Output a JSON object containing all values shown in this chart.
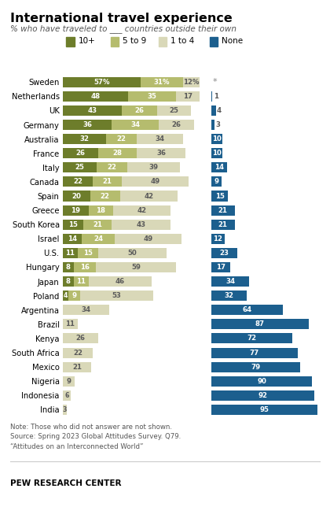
{
  "title": "International travel experience",
  "subtitle": "% who have traveled to ___ countries outside their own",
  "note": "Note: Those who did not answer are not shown.\nSource: Spring 2023 Global Attitudes Survey. Q79.\n“Attitudes on an Interconnected World”",
  "footer": "PEW RESEARCH CENTER",
  "countries": [
    "Sweden",
    "Netherlands",
    "UK",
    "Germany",
    "Australia",
    "France",
    "Italy",
    "Canada",
    "Spain",
    "Greece",
    "South Korea",
    "Israel",
    "U.S.",
    "Hungary",
    "Japan",
    "Poland",
    "Argentina",
    "Brazil",
    "Kenya",
    "South Africa",
    "Mexico",
    "Nigeria",
    "Indonesia",
    "India"
  ],
  "ten_plus": [
    57,
    48,
    43,
    36,
    32,
    26,
    25,
    22,
    20,
    19,
    15,
    14,
    11,
    8,
    8,
    4,
    0,
    0,
    0,
    0,
    0,
    0,
    0,
    0
  ],
  "five_to_9": [
    31,
    35,
    26,
    34,
    22,
    28,
    22,
    21,
    22,
    18,
    21,
    24,
    15,
    16,
    11,
    9,
    0,
    0,
    0,
    0,
    0,
    0,
    0,
    0
  ],
  "one_to_4": [
    12,
    17,
    25,
    26,
    34,
    36,
    39,
    49,
    42,
    42,
    43,
    49,
    50,
    59,
    46,
    53,
    34,
    11,
    26,
    22,
    21,
    9,
    6,
    3
  ],
  "none": [
    0,
    1,
    4,
    3,
    10,
    10,
    14,
    9,
    15,
    21,
    21,
    12,
    23,
    17,
    34,
    32,
    64,
    87,
    72,
    77,
    79,
    90,
    92,
    95
  ],
  "color_10plus": "#6d7d2b",
  "color_5to9": "#b5bc6e",
  "color_1to4": "#d9d8b8",
  "color_none": "#1c5f8e",
  "bar_height": 0.72,
  "figsize": [
    4.2,
    6.44
  ],
  "dpi": 100,
  "left_xlim": 105,
  "right_xlim": 100,
  "label_fontsize": 6.2,
  "country_fontsize": 7.2,
  "title_fontsize": 11.5,
  "subtitle_fontsize": 7.5,
  "legend_fontsize": 7.5,
  "note_fontsize": 6.2
}
